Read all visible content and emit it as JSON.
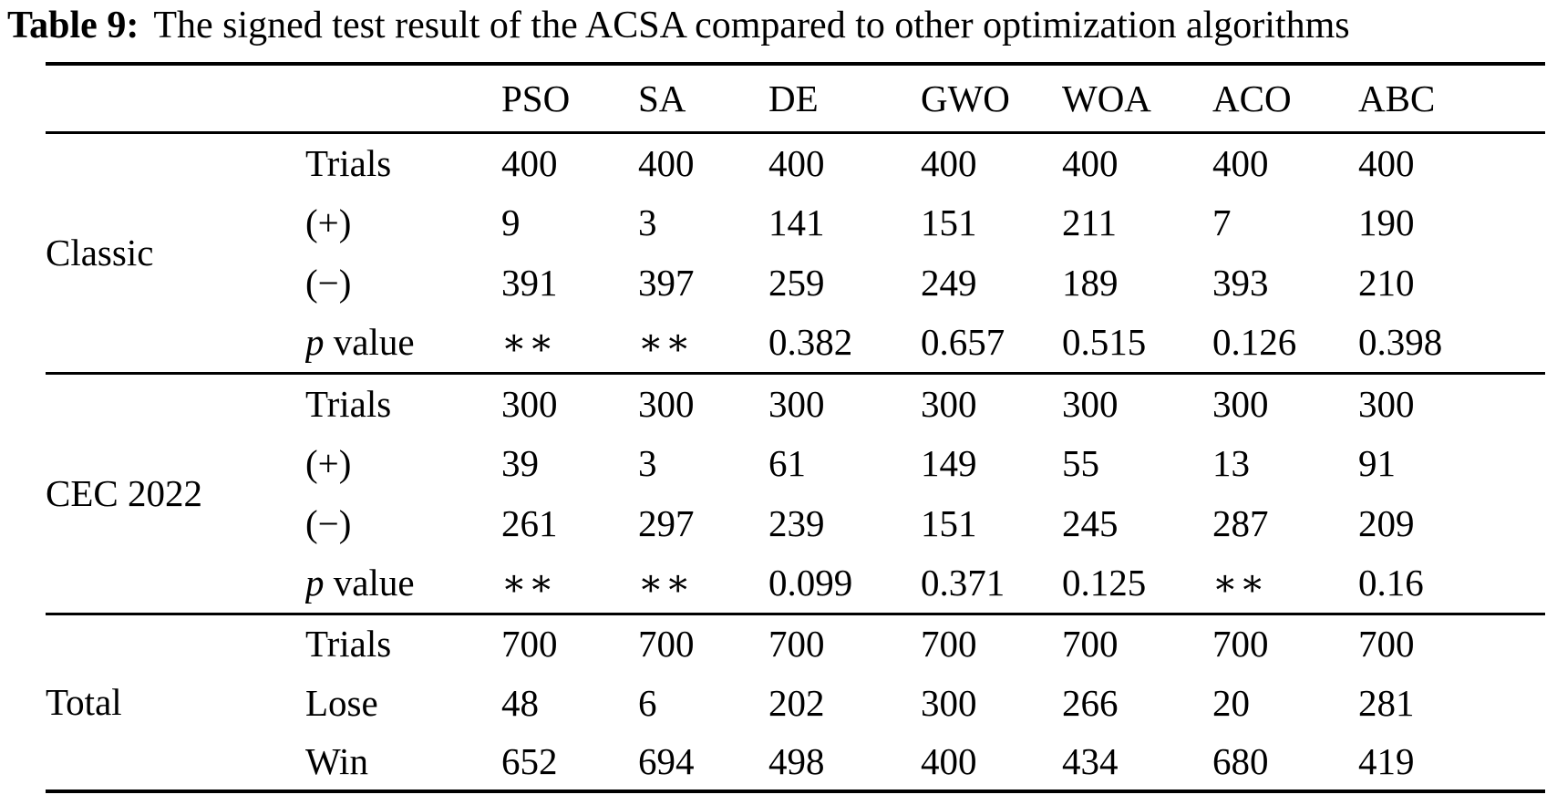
{
  "title": {
    "label": "Table 9:",
    "text": "The signed test result of the ACSA compared to other optimization algorithms"
  },
  "table": {
    "columns": [
      "PSO",
      "SA",
      "DE",
      "GWO",
      "WOA",
      "ACO",
      "ABC"
    ],
    "sections": [
      {
        "group": "Classic",
        "bold": false,
        "rows": [
          {
            "metric": "Trials",
            "cells": [
              {
                "v": "400"
              },
              {
                "v": "400"
              },
              {
                "v": "400"
              },
              {
                "v": "400"
              },
              {
                "v": "400"
              },
              {
                "v": "400"
              },
              {
                "v": "400"
              }
            ]
          },
          {
            "metric": "(+)",
            "cells": [
              {
                "v": "9"
              },
              {
                "v": "3"
              },
              {
                "v": "141"
              },
              {
                "v": "151"
              },
              {
                "v": "211",
                "b": true
              },
              {
                "v": "7"
              },
              {
                "v": "190"
              }
            ]
          },
          {
            "metric": "(−)",
            "cells": [
              {
                "v": "391",
                "b": true
              },
              {
                "v": "397",
                "b": true
              },
              {
                "v": "259",
                "b": true
              },
              {
                "v": "249",
                "b": true
              },
              {
                "v": "189"
              },
              {
                "v": "393",
                "b": true
              },
              {
                "v": "210",
                "b": true
              }
            ]
          },
          {
            "metric": "p value",
            "cells": [
              {
                "v": "∗∗",
                "s": true
              },
              {
                "v": "∗∗",
                "s": true
              },
              {
                "v": "0.382"
              },
              {
                "v": "0.657"
              },
              {
                "v": "0.515"
              },
              {
                "v": "0.126"
              },
              {
                "v": "0.398"
              }
            ]
          }
        ]
      },
      {
        "group": "CEC 2022",
        "bold": false,
        "rows": [
          {
            "metric": "Trials",
            "cells": [
              {
                "v": "300"
              },
              {
                "v": "300"
              },
              {
                "v": "300"
              },
              {
                "v": "300"
              },
              {
                "v": "300"
              },
              {
                "v": "300"
              },
              {
                "v": "300"
              }
            ]
          },
          {
            "metric": "(+)",
            "cells": [
              {
                "v": "39"
              },
              {
                "v": "3"
              },
              {
                "v": "61"
              },
              {
                "v": "149"
              },
              {
                "v": "55"
              },
              {
                "v": "13"
              },
              {
                "v": "91"
              }
            ]
          },
          {
            "metric": "(−)",
            "cells": [
              {
                "v": "261",
                "b": true
              },
              {
                "v": "297",
                "b": true
              },
              {
                "v": "239",
                "b": true
              },
              {
                "v": "151",
                "b": true
              },
              {
                "v": "245",
                "b": true
              },
              {
                "v": "287",
                "b": true
              },
              {
                "v": "209",
                "b": true
              }
            ]
          },
          {
            "metric": "p value",
            "cells": [
              {
                "v": "∗∗",
                "s": true
              },
              {
                "v": "∗∗",
                "s": true
              },
              {
                "v": "0.099"
              },
              {
                "v": "0.371"
              },
              {
                "v": "0.125"
              },
              {
                "v": "∗∗",
                "s": true
              },
              {
                "v": "0.16"
              }
            ]
          }
        ]
      },
      {
        "group": "Total",
        "bold": true,
        "rows": [
          {
            "metric": "Trials",
            "cells": [
              {
                "v": "700"
              },
              {
                "v": "700"
              },
              {
                "v": "700"
              },
              {
                "v": "700"
              },
              {
                "v": "700"
              },
              {
                "v": "700"
              },
              {
                "v": "700"
              }
            ]
          },
          {
            "metric": "Lose",
            "cells": [
              {
                "v": "48"
              },
              {
                "v": "6"
              },
              {
                "v": "202"
              },
              {
                "v": "300"
              },
              {
                "v": "266"
              },
              {
                "v": "20"
              },
              {
                "v": "281"
              }
            ]
          },
          {
            "metric": "Win",
            "cells": [
              {
                "v": "652",
                "b": true
              },
              {
                "v": "694",
                "b": true
              },
              {
                "v": "498",
                "b": true
              },
              {
                "v": "400",
                "b": true
              },
              {
                "v": "434",
                "b": true
              },
              {
                "v": "680",
                "b": true
              },
              {
                "v": "419",
                "b": true
              }
            ]
          }
        ]
      }
    ]
  }
}
